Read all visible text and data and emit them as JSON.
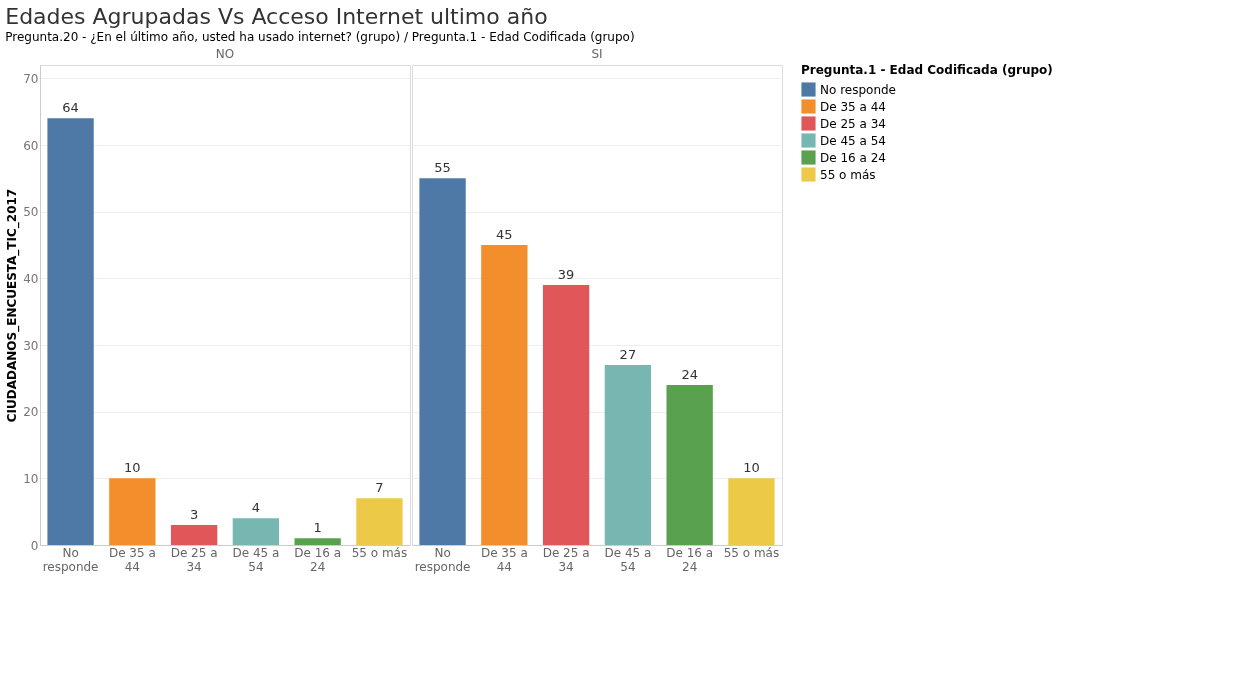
{
  "chart_data": [
    {
      "type": "bar",
      "title": "Edades Agrupadas Vs Acceso Internet ultimo año",
      "subtitle": "Pregunta.20 - ¿En el último año, usted ha usado internet? (grupo)  /  Pregunta.1 - Edad Codificada (grupo)",
      "xlabel": "NO",
      "ylabel": "CIUDADANOS_ENCUESTA_TIC_2017",
      "legend_title": "Pregunta.1 - Edad Codificada (grupo)",
      "legend": "right",
      "categories": [
        "No responde",
        "De 35 a 44",
        "De 25 a 34",
        "De 45 a 54",
        "De 16 a 24",
        "55 o más"
      ],
      "series": [
        {
          "name": "No responde",
          "color": "#4e79a7",
          "values": [
            64,
            null,
            null,
            null,
            null,
            null
          ]
        },
        {
          "name": "De 35 a 44",
          "color": "#f28e2b",
          "values": [
            null,
            10,
            null,
            null,
            null,
            null
          ]
        },
        {
          "name": "De 25 a 34",
          "color": "#e15759",
          "values": [
            null,
            null,
            3,
            null,
            null,
            null
          ]
        },
        {
          "name": "De 45 a 54",
          "color": "#76b7b2",
          "values": [
            null,
            null,
            null,
            4,
            null,
            null
          ]
        },
        {
          "name": "De 16 a 24",
          "color": "#59a14f",
          "values": [
            null,
            null,
            null,
            null,
            1,
            null
          ]
        },
        {
          "name": "55 o más",
          "color": "#edc948",
          "values": [
            null,
            null,
            null,
            null,
            null,
            7
          ]
        }
      ],
      "ylim": [
        0,
        72
      ],
      "yticks": [
        0,
        10,
        20,
        30,
        40,
        50,
        60,
        70
      ],
      "grid": "y",
      "data_labels": true
    },
    {
      "type": "bar",
      "xlabel": "SI",
      "categories": [
        "No responde",
        "De 35 a 44",
        "De 25 a 34",
        "De 45 a 54",
        "De 16 a 24",
        "55 o más"
      ],
      "series": [
        {
          "color": "#4e79a7",
          "values": [
            55,
            null,
            null,
            null,
            null,
            null
          ]
        },
        {
          "color": "#f28e2b",
          "values": [
            null,
            45,
            null,
            null,
            null,
            null
          ]
        },
        {
          "color": "#e15759",
          "values": [
            null,
            null,
            39,
            null,
            null,
            null
          ]
        },
        {
          "color": "#76b7b2",
          "values": [
            null,
            null,
            null,
            27,
            null,
            null
          ]
        },
        {
          "color": "#59a14f",
          "values": [
            null,
            null,
            null,
            null,
            24,
            null
          ]
        },
        {
          "color": "#edc948",
          "values": [
            null,
            null,
            null,
            null,
            null,
            10
          ]
        }
      ],
      "ylim": [
        0,
        72
      ],
      "yticks": [
        0,
        10,
        20,
        30,
        40,
        50,
        60,
        70
      ],
      "grid": "y",
      "data_labels": true,
      "tick_labels": "x"
    }
  ]
}
